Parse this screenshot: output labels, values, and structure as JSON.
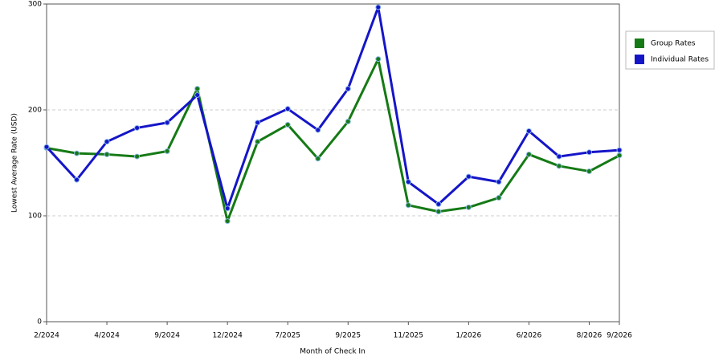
{
  "chart_data": {
    "type": "line",
    "x_label": "Month of Check In",
    "y_label": "Lowest Average Rate (USD)",
    "categories": [
      "2/2024",
      null,
      "4/2024",
      null,
      "9/2024",
      null,
      "12/2024",
      null,
      "7/2025",
      null,
      "9/2025",
      null,
      "11/2025",
      null,
      "1/2026",
      null,
      "6/2026",
      null,
      "8/2026",
      "9/2026"
    ],
    "series": [
      {
        "name": "Group Rates",
        "color": "#157a15",
        "values": [
          164,
          159,
          158,
          156,
          161,
          220,
          95,
          170,
          186,
          154,
          189,
          248,
          110,
          104,
          108,
          117,
          158,
          147,
          142,
          157
        ]
      },
      {
        "name": "Individual Rates",
        "color": "#1515c8",
        "values": [
          165,
          134,
          170,
          183,
          188,
          214,
          107,
          188,
          201,
          181,
          220,
          297,
          132,
          111,
          137,
          132,
          180,
          156,
          160,
          162
        ]
      }
    ],
    "ylim": [
      0,
      300
    ],
    "yticks": [
      0,
      100,
      200,
      300
    ],
    "grid": true,
    "legend": "right"
  }
}
